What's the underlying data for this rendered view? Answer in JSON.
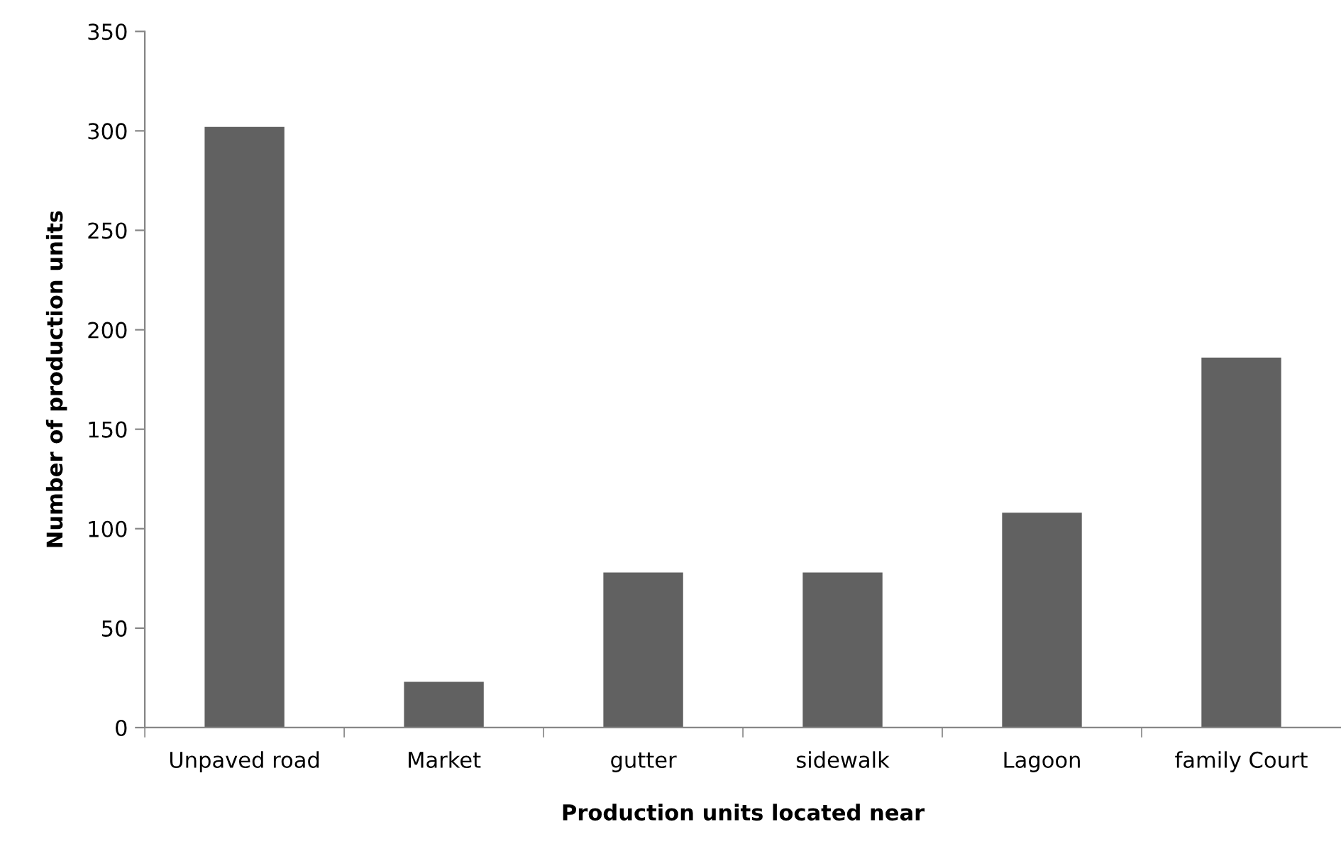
{
  "chart_data": {
    "type": "bar",
    "xlabel": "Production units located near",
    "ylabel": "Number of production units",
    "categories": [
      "Unpaved road",
      "Market",
      "gutter",
      "sidewalk",
      "Lagoon",
      "family Court"
    ],
    "values": [
      302,
      23,
      78,
      78,
      108,
      186
    ],
    "color": "#616161",
    "ylim": [
      0,
      350
    ],
    "yticks": [
      0,
      50,
      100,
      150,
      200,
      250,
      300,
      350
    ],
    "grid": false,
    "legend": false
  }
}
